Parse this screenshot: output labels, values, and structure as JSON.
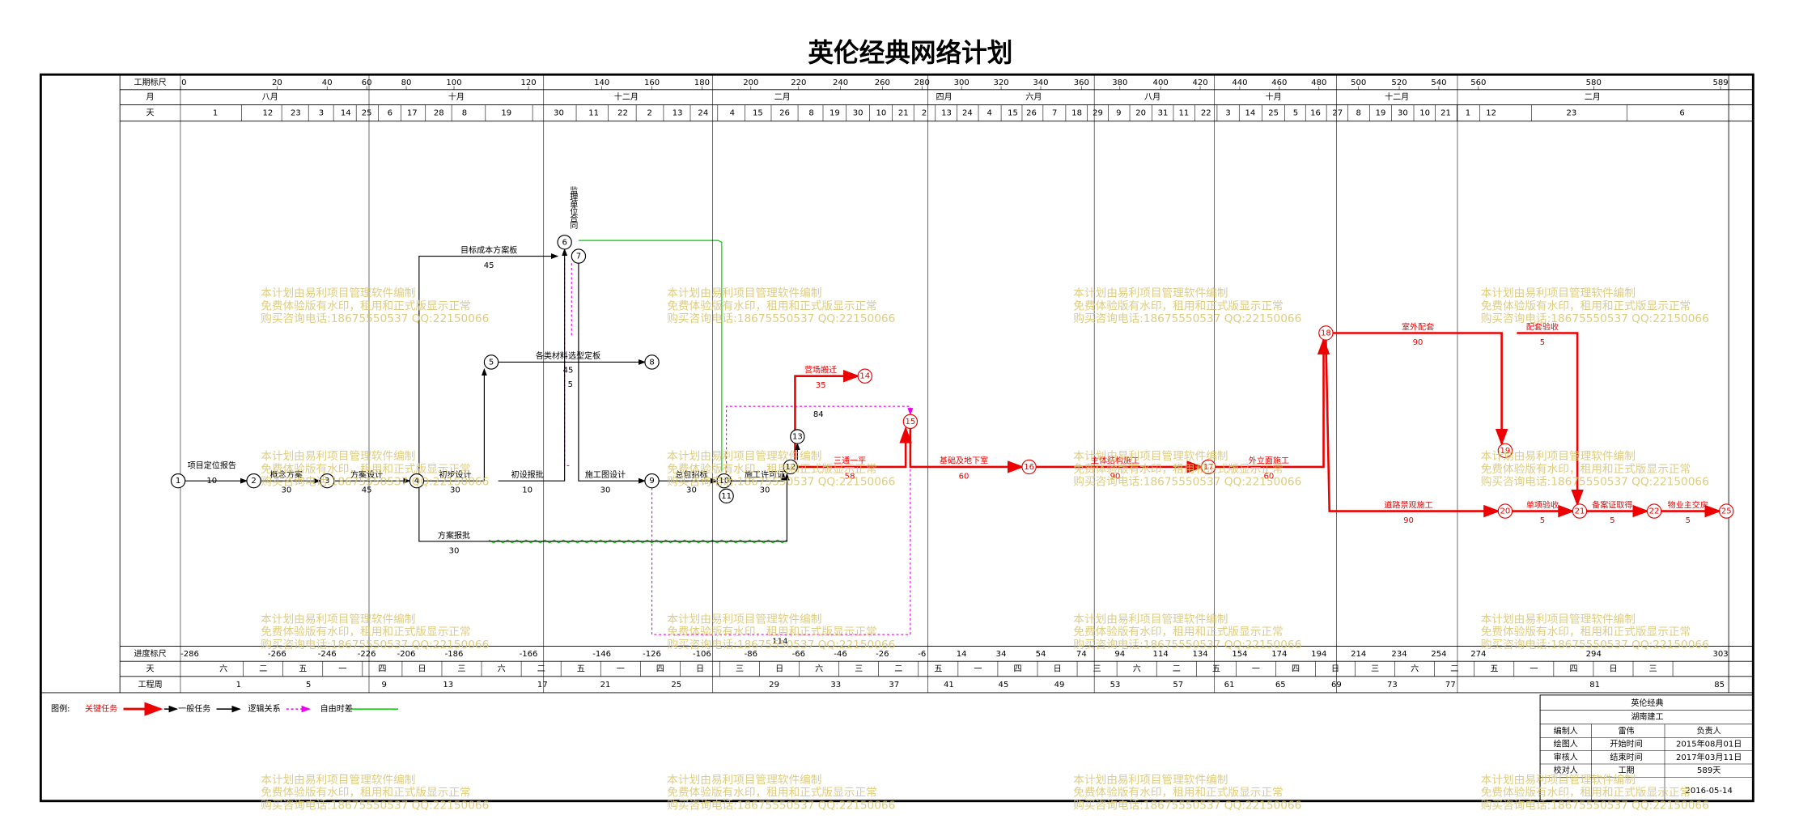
{
  "title": "英伦经典网络计划",
  "header": {
    "row_labels": [
      "工期标尺",
      "月",
      "天"
    ],
    "duration_ticks": [
      0,
      20,
      40,
      60,
      80,
      100,
      120,
      140,
      160,
      180,
      200,
      220,
      240,
      260,
      280,
      300,
      320,
      340,
      360,
      380,
      400,
      420,
      440,
      460,
      480,
      500,
      520,
      540,
      560,
      580,
      589
    ],
    "months": [
      "八月",
      "十月",
      "十二月",
      "二月",
      "四月",
      "六月",
      "八月",
      "十月",
      "十二月",
      "二月"
    ],
    "days": [
      1,
      12,
      23,
      3,
      14,
      25,
      6,
      17,
      28,
      8,
      19,
      30,
      11,
      22,
      2,
      13,
      24,
      4,
      15,
      26,
      8,
      19,
      30,
      10,
      21,
      2,
      13,
      24,
      4,
      15,
      26,
      7,
      18,
      29,
      9,
      20,
      31,
      11,
      22,
      3,
      14,
      25,
      5,
      16,
      27,
      8,
      19,
      30,
      10,
      21,
      1,
      12,
      23,
      6
    ]
  },
  "footer": {
    "row_labels": [
      "进度标尺",
      "天",
      "工程周"
    ],
    "progress_ticks": [
      -286,
      -266,
      -246,
      -226,
      -206,
      -186,
      -166,
      -146,
      -126,
      -106,
      -86,
      -66,
      -46,
      -26,
      -6,
      14,
      34,
      54,
      74,
      94,
      114,
      134,
      154,
      174,
      194,
      214,
      234,
      254,
      274,
      294,
      303
    ],
    "weekdays": [
      "六",
      "二",
      "五",
      "一",
      "四",
      "日",
      "三",
      "六",
      "二",
      "五",
      "一",
      "四",
      "日",
      "三",
      "日",
      "六",
      "三",
      "二",
      "五",
      "一",
      "四",
      "日",
      "三",
      "六",
      "二",
      "五",
      "一",
      "四",
      "日",
      "三",
      "六",
      "二",
      "五",
      "一",
      "四",
      "日",
      "三"
    ],
    "weeks": [
      1,
      5,
      9,
      13,
      17,
      21,
      25,
      29,
      33,
      37,
      41,
      45,
      49,
      53,
      57,
      61,
      65,
      69,
      73,
      77,
      81,
      85
    ]
  },
  "nodes": [
    "1",
    "2",
    "3",
    "4",
    "5",
    "6",
    "7",
    "8",
    "9",
    "10",
    "11",
    "12",
    "13",
    "14",
    "15",
    "16",
    "17",
    "18",
    "19",
    "20",
    "21",
    "22",
    "25"
  ],
  "tasks": [
    {
      "name": "项目定位报告",
      "duration": 10
    },
    {
      "name": "概念方案",
      "duration": 30
    },
    {
      "name": "方案设计",
      "duration": 45
    },
    {
      "name": "初步设计",
      "duration": 30
    },
    {
      "name": "初设报批",
      "duration": 10
    },
    {
      "name": "目标成本方案板",
      "duration": 45
    },
    {
      "name": "各类材料选型定板"
    },
    {
      "name": "施工图设计",
      "duration": 30
    },
    {
      "name": "总包招标",
      "duration": 30
    },
    {
      "name": "施工许可证",
      "duration": 30
    },
    {
      "name": "方案报批",
      "duration": 30
    },
    {
      "name": "营场搬迁",
      "duration": 35
    },
    {
      "name": "三通一平",
      "duration": 58
    },
    {
      "name": "基础及地下室",
      "duration": 60
    },
    {
      "name": "主体结构施工",
      "duration": 90
    },
    {
      "name": "外立面施工",
      "duration": 60
    },
    {
      "name": "室外配套",
      "duration": 90
    },
    {
      "name": "配套验收",
      "duration": 5
    },
    {
      "name": "道路景观施工",
      "duration": 90
    },
    {
      "name": "单项验收",
      "duration": 5
    },
    {
      "name": "备案证取得",
      "duration": 5
    },
    {
      "name": "物业主交房",
      "duration": 5
    }
  ],
  "float_labels": [
    "84",
    "114",
    "5",
    "45"
  ],
  "contract_note": "监理单位合同",
  "legend": {
    "title": "图例:",
    "items": [
      "关键任务",
      "一般任务",
      "逻辑关系",
      "自由时差"
    ]
  },
  "info": {
    "project": "英伦经典",
    "company": "湖南建工",
    "rows": [
      [
        "编制人",
        "雷伟",
        "负责人"
      ],
      [
        "绘图人",
        "开始时间",
        "2015年08月01日"
      ],
      [
        "审核人",
        "结束时间",
        "2017年03月11日"
      ],
      [
        "校对人",
        "工期",
        "589天"
      ]
    ],
    "date": "2016-05-14"
  },
  "watermark": [
    "本计划由易利项目管理软件编制",
    "免费体验版有水印，租用和正式版显示正常",
    "购买咨询电话:18675550537 QQ:22150066"
  ]
}
